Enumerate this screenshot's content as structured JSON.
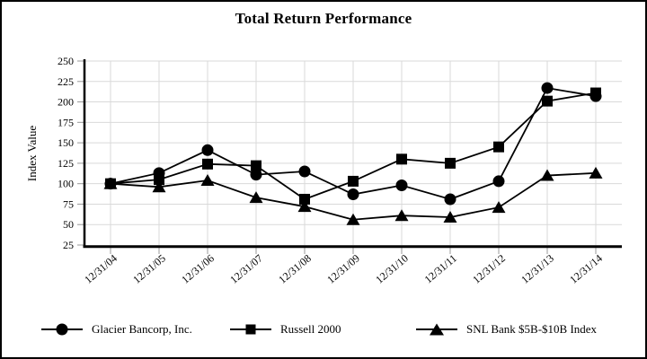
{
  "chart_data": {
    "type": "line",
    "title": "Total Return Performance",
    "xlabel": "",
    "ylabel": "Index Value",
    "ylim": [
      25,
      250
    ],
    "yticks": [
      250,
      225,
      200,
      175,
      150,
      125,
      100,
      75,
      50,
      25
    ],
    "x": [
      "12/31/04",
      "12/31/05",
      "12/31/06",
      "12/31/07",
      "12/31/08",
      "12/31/09",
      "12/31/10",
      "12/31/11",
      "12/31/12",
      "12/31/13",
      "12/31/14"
    ],
    "series": [
      {
        "name": "Glacier Bancorp, Inc.",
        "marker": "circle",
        "values": [
          100,
          113,
          141,
          111,
          115,
          87,
          98,
          81,
          103,
          217,
          207
        ]
      },
      {
        "name": "Russell 2000",
        "marker": "square",
        "values": [
          100,
          105,
          124,
          122,
          81,
          103,
          130,
          125,
          145,
          201,
          211
        ]
      },
      {
        "name": "SNL Bank $5B-$10B Index",
        "marker": "triangle",
        "values": [
          100,
          96,
          104,
          83,
          72,
          56,
          61,
          59,
          71,
          110,
          113
        ]
      }
    ],
    "grid": true,
    "legend_position": "bottom",
    "colors": {
      "line": "#000000",
      "marker": "#000000",
      "grid": "#d9d9d9",
      "tick": "#999999",
      "axis": "#000000"
    }
  }
}
